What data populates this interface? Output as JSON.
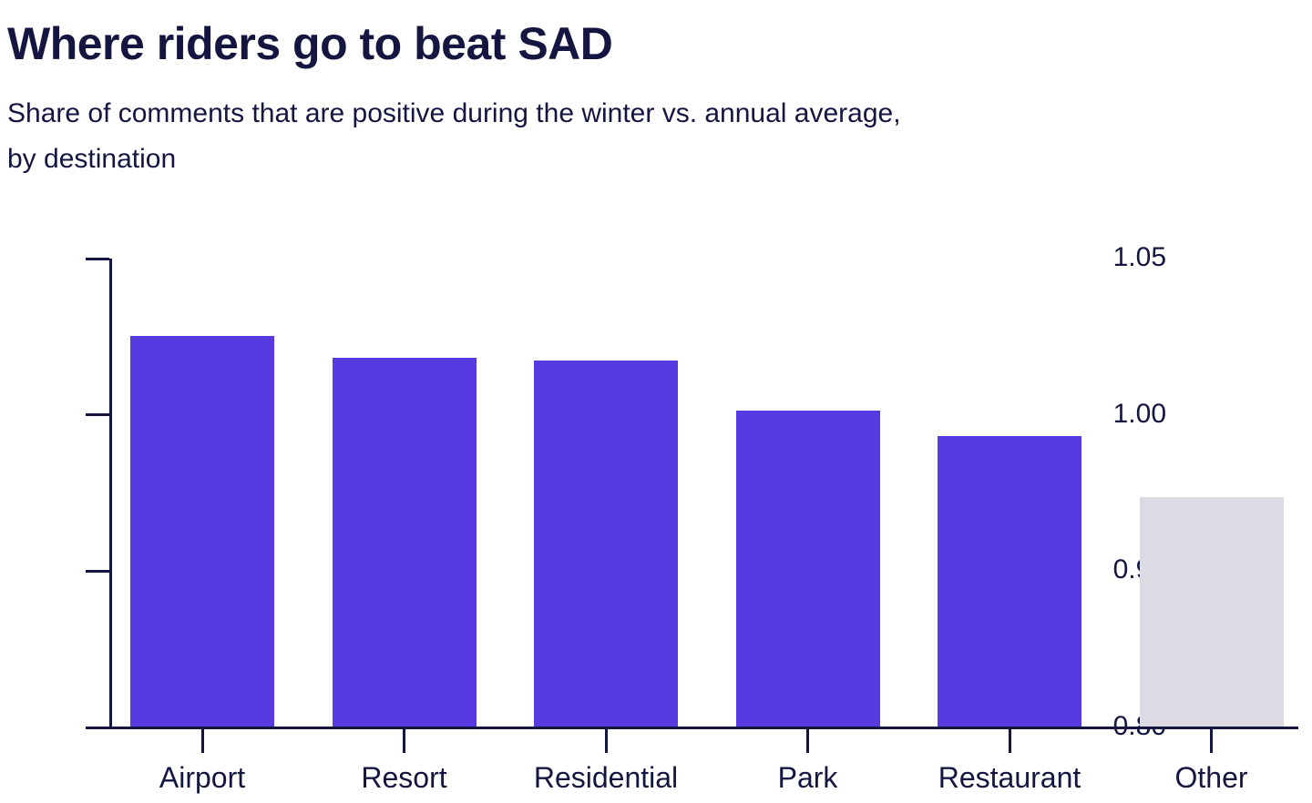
{
  "header": {
    "title": "Where riders go to beat SAD",
    "subtitle_line1": "Share of comments that are positive during the winter vs. annual average,",
    "subtitle_line2": "by destination"
  },
  "chart_data": {
    "type": "bar",
    "title": "Where riders go to beat SAD",
    "subtitle": "Share of comments that are positive during the winter vs. annual average, by destination",
    "categories": [
      "Airport",
      "Resort",
      "Residential",
      "Park",
      "Restaurant",
      "Other"
    ],
    "values": [
      1.025,
      1.018,
      1.017,
      1.001,
      0.986,
      0.947
    ],
    "bar_colors": [
      "#573BE0",
      "#573BE0",
      "#573BE0",
      "#573BE0",
      "#573BE0",
      "#DCDBE3"
    ],
    "highlight_color": "#573BE0",
    "muted_color": "#DCDBE3",
    "axis_color": "#141540",
    "xlabel": "",
    "ylabel": "",
    "y_axis": {
      "tick_labels": [
        "1.05",
        "1.00",
        "0.90",
        "0.80"
      ],
      "tick_values": [
        1.05,
        1.0,
        0.9,
        0.8
      ],
      "equal_spacing": true
    },
    "grid": false,
    "legend": false
  }
}
